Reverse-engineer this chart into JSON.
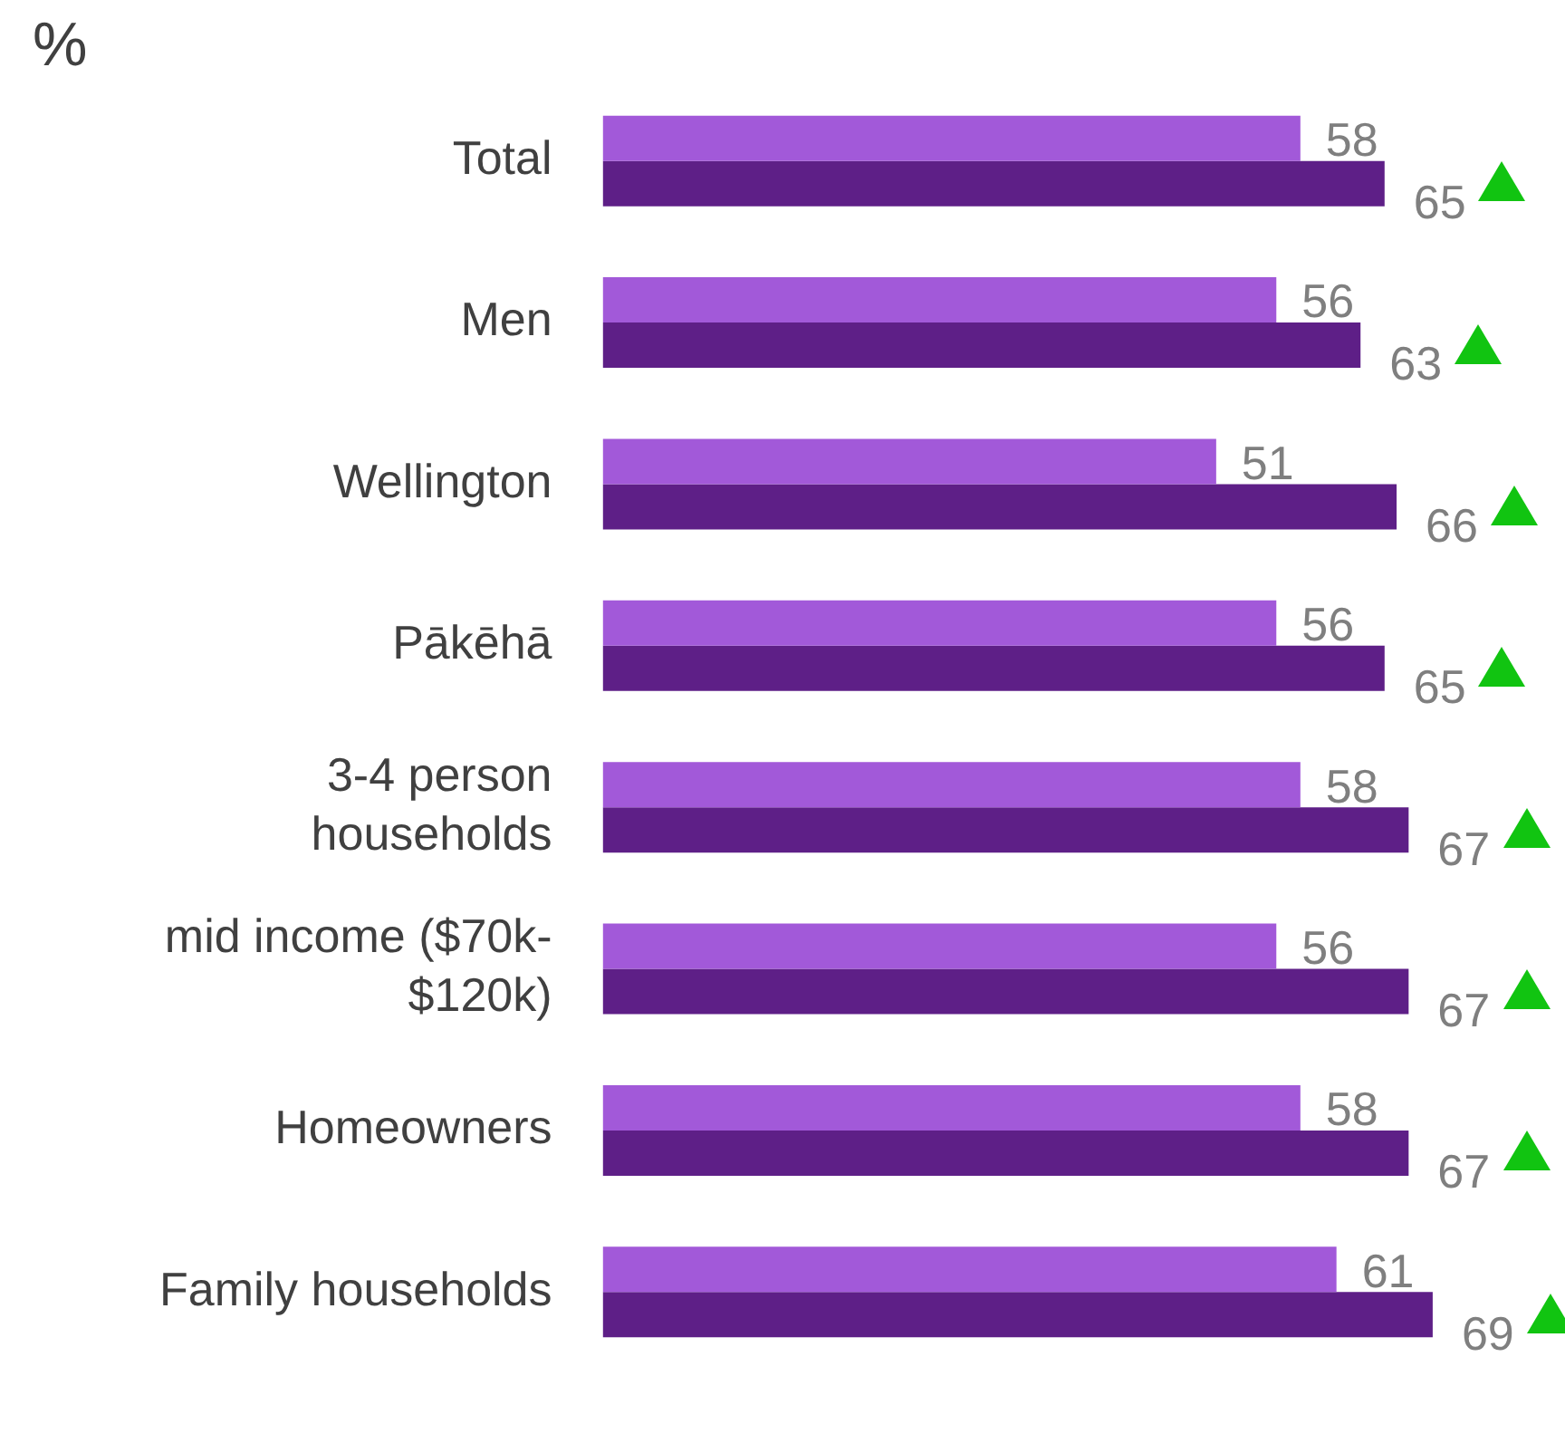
{
  "chart_data": {
    "type": "bar",
    "orientation": "horizontal",
    "title": "%",
    "categories": [
      "Total",
      "Men",
      "Wellington",
      "Pākēhā",
      "3-4 person households",
      "mid income ($70k-$120k)",
      "Homeowners",
      "Family households"
    ],
    "series": [
      {
        "color": "#a259d9",
        "values": [
          58,
          56,
          51,
          56,
          58,
          56,
          58,
          61
        ]
      },
      {
        "color": "#5e1f87",
        "values": [
          65,
          63,
          66,
          65,
          67,
          67,
          67,
          69
        ]
      }
    ],
    "data_labels": true,
    "grid": false,
    "legend": false,
    "tick_labels": "y"
  }
}
